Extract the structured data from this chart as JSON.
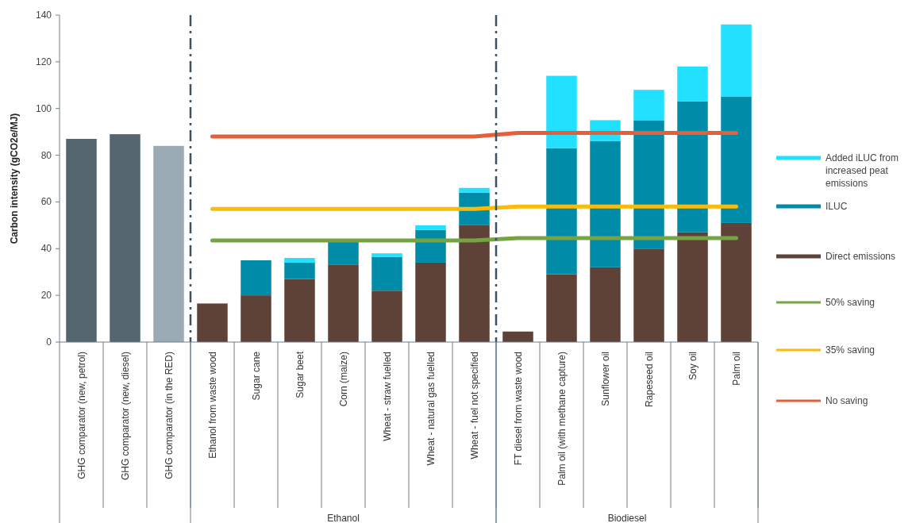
{
  "chart_data": {
    "type": "bar",
    "stacked": true,
    "ylabel": "Carbon intensity (gCO2e/MJ)",
    "ylim": [
      0,
      140
    ],
    "yticks": [
      0,
      20,
      40,
      60,
      80,
      100,
      120,
      140
    ],
    "grid": false,
    "legend": "right",
    "categories": [
      "GHG comparator (new, petrol)",
      "GHG comparator (new, diesel)",
      "GHG comparator (in the RED)",
      "Ethanol from waste wood",
      "Sugar cane",
      "Sugar beet",
      "Corn (maize)",
      "Wheat - straw fuelled",
      "Wheat - natural gas fuelled",
      "Wheat - fuel not specified",
      "FT diesel from waste wood",
      "Palm oil (with methane capture)",
      "Sunflower oil",
      "Rapeseed oil",
      "Soy oil",
      "Palm oil"
    ],
    "series": [
      {
        "colors": [
          "#56666f",
          "#56666f",
          "#9aabb6",
          null,
          null,
          null,
          null,
          null,
          null,
          null,
          null,
          null,
          null,
          null,
          null,
          null
        ],
        "values": [
          87,
          89,
          84,
          null,
          null,
          null,
          null,
          null,
          null,
          null,
          null,
          null,
          null,
          null,
          null,
          null
        ]
      },
      {
        "name": "Direct emissions",
        "color": "#5e4237",
        "values": [
          null,
          null,
          null,
          16.5,
          20,
          27,
          33,
          22,
          34,
          50,
          4.5,
          29,
          32,
          40,
          47,
          51
        ]
      },
      {
        "name": "ILUC",
        "color": "#008ca8",
        "values": [
          null,
          null,
          null,
          null,
          15,
          7,
          11,
          14.5,
          14,
          14,
          null,
          54,
          54,
          55,
          56,
          54
        ]
      },
      {
        "name": "Added iLUC from increased peat emissions",
        "color": "#22e0ff",
        "values": [
          null,
          null,
          null,
          null,
          null,
          2,
          null,
          1.5,
          2,
          2,
          null,
          31,
          9,
          13,
          15,
          31
        ]
      },
      {
        "name": "50% saving",
        "type": "line",
        "color": "#76a344",
        "values": [
          null,
          null,
          null,
          43.5,
          43.5,
          43.5,
          43.5,
          43.5,
          43.5,
          43.5,
          44.5,
          44.5,
          44.5,
          44.5,
          44.5,
          44.5
        ]
      },
      {
        "name": "35% saving",
        "type": "line",
        "color": "#f9bc08",
        "values": [
          null,
          null,
          null,
          57,
          57,
          57,
          57,
          57,
          57,
          57,
          58,
          58,
          58,
          58,
          58,
          58
        ]
      },
      {
        "name": "No saving",
        "type": "line",
        "color": "#e4603a",
        "values": [
          null,
          null,
          null,
          88,
          88,
          88,
          88,
          88,
          88,
          88,
          89.5,
          89.5,
          89.5,
          89.5,
          89.5,
          89.5
        ]
      }
    ],
    "annotations": [
      "Ethanol",
      "Biodiesel"
    ]
  }
}
